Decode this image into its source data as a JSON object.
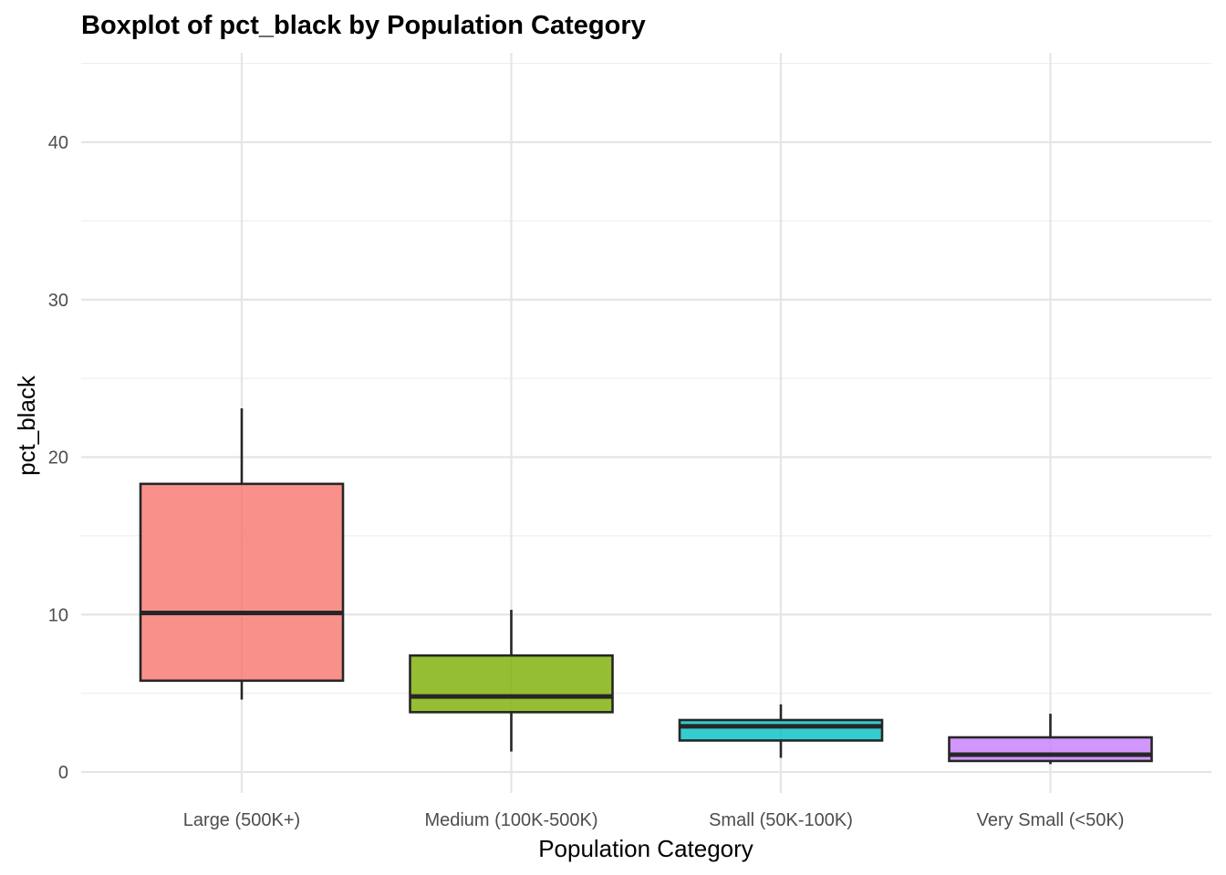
{
  "chart_data": {
    "type": "boxplot",
    "title": "Boxplot of pct_black by Population Category",
    "xlabel": "Population Category",
    "ylabel": "pct_black",
    "ylim": [
      -2,
      45
    ],
    "yticks": [
      0,
      10,
      20,
      30,
      40
    ],
    "grid": true,
    "categories": [
      "Large (500K+)",
      "Medium (100K-500K)",
      "Small (50K-100K)",
      "Very Small (<50K)"
    ],
    "boxes": [
      {
        "category": "Large (500K+)",
        "whisker_low": 4.6,
        "q1": 5.8,
        "median": 10.1,
        "q3": 18.3,
        "whisker_high": 23.1,
        "color": "#F8766D"
      },
      {
        "category": "Medium (100K-500K)",
        "whisker_low": 1.3,
        "q1": 3.8,
        "median": 4.8,
        "q3": 7.4,
        "whisker_high": 10.3,
        "color": "#7CAE00"
      },
      {
        "category": "Small (50K-100K)",
        "whisker_low": 0.9,
        "q1": 2.0,
        "median": 2.9,
        "q3": 3.3,
        "whisker_high": 4.3,
        "color": "#00BFC4"
      },
      {
        "category": "Very Small (<50K)",
        "whisker_low": 0.5,
        "q1": 0.7,
        "median": 1.1,
        "q3": 2.2,
        "whisker_high": 3.7,
        "color": "#C77CFF"
      }
    ]
  }
}
